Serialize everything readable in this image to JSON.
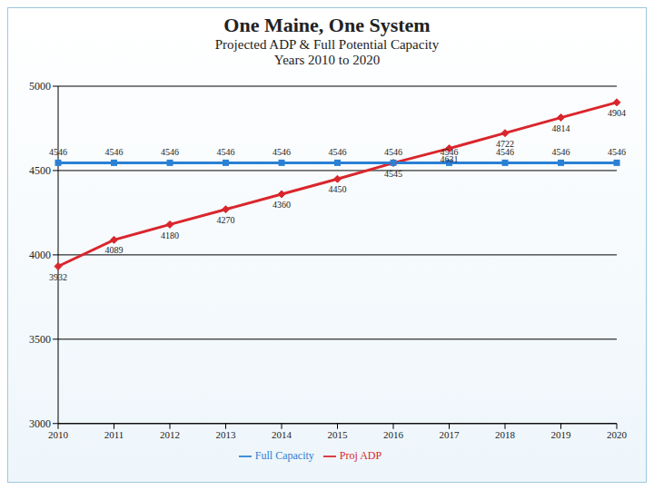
{
  "chart_data": {
    "type": "line",
    "title": "One Maine, One System",
    "subtitle": [
      "Projected ADP & Full Potential Capacity",
      "Years 2010 to 2020"
    ],
    "categories": [
      "2010",
      "2011",
      "2012",
      "2013",
      "2014",
      "2015",
      "2016",
      "2017",
      "2018",
      "2019",
      "2020"
    ],
    "series": [
      {
        "name": "Proj ADP",
        "color": "#d9262c",
        "marker": "diamond",
        "values": [
          3932,
          4089,
          4180,
          4270,
          4360,
          4450,
          4545,
          4631,
          4722,
          4814,
          4904
        ]
      },
      {
        "name": "Full Capacity",
        "color": "#2a80d5",
        "marker": "square",
        "values": [
          4546,
          4546,
          4546,
          4546,
          4546,
          4546,
          4546,
          4546,
          4546,
          4546,
          4546
        ]
      }
    ],
    "ylim": [
      3000,
      5000
    ],
    "yticks": [
      3000,
      3500,
      4000,
      4500,
      5000
    ],
    "grid": true,
    "legend": "bottom",
    "data_labels": true
  }
}
